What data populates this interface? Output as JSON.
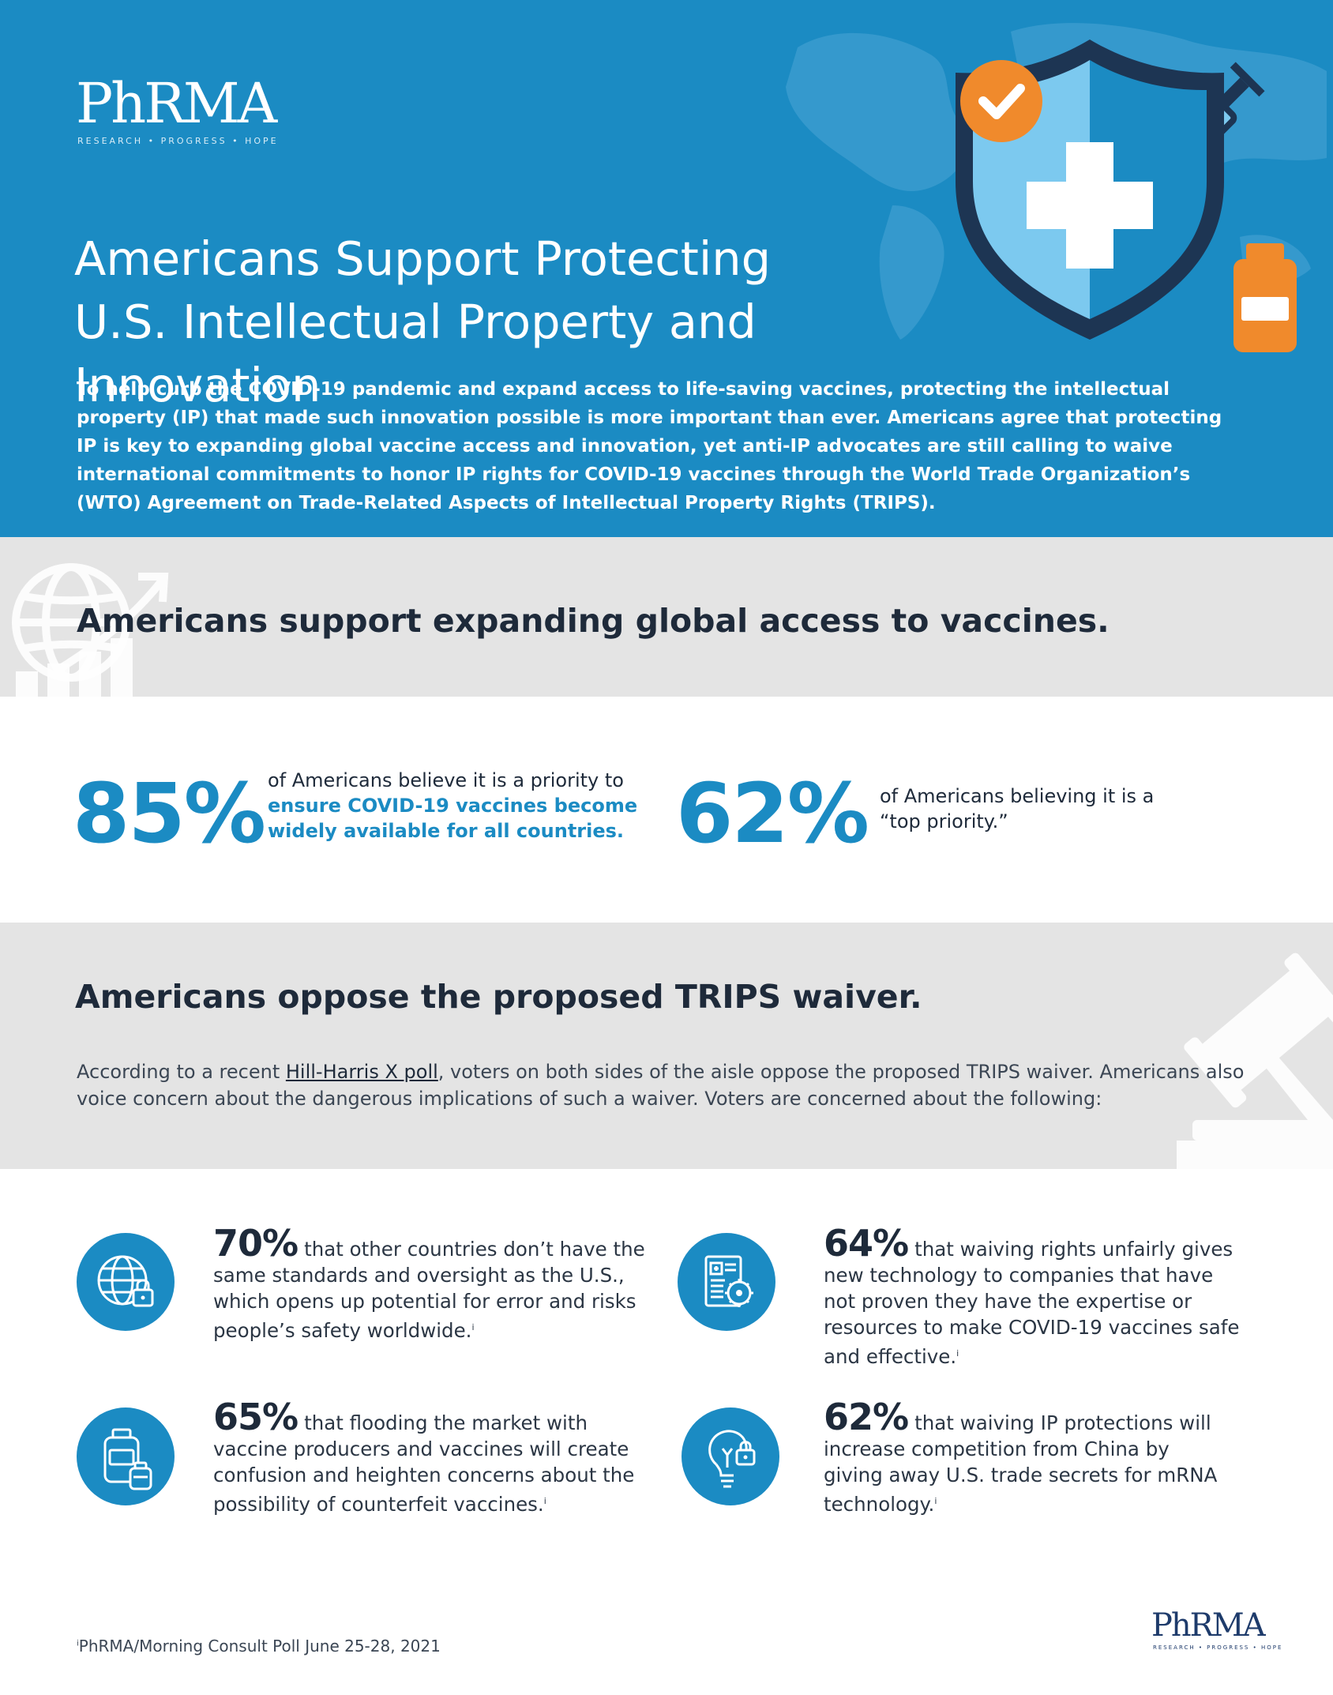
{
  "header": {
    "logo": "PhRMA",
    "logo_tagline": "RESEARCH • PROGRESS • HOPE",
    "title_line1": "Americans Support Protecting",
    "title_line2": "U.S. Intellectual Property and Innovation",
    "intro": "To help curb the COVID-19 pandemic and expand access to life-saving vaccines, protecting the intellectual property (IP) that made such innovation possible is more important than ever. Americans agree that protecting IP is key to expanding global vaccine access and innovation, yet anti-IP advocates are still calling to waive international commitments to honor IP rights for COVID-19 vaccines through the World Trade Organization’s (WTO) Agreement on Trade-Related Aspects of Intellectual Property Rights (TRIPS)."
  },
  "section_access": {
    "heading": "Americans support expanding global access to vaccines.",
    "stat1": {
      "value": "85%",
      "text": "of Americans believe it is a priority to",
      "highlight_line1": "ensure COVID-19 vaccines become",
      "highlight_line2": "widely available for all countries."
    },
    "stat2": {
      "value": "62%",
      "line1": "of Americans believing it is a",
      "line2": "“top priority.”"
    }
  },
  "section_trips": {
    "heading": "Americans oppose the proposed TRIPS waiver.",
    "intro_before_link": "According to a recent ",
    "link_text": "Hill-Harris X poll",
    "intro_after_link": ", voters on both sides of the aisle oppose the proposed TRIPS waiver. Americans also voice concern about the dangerous implications of such a waiver. Voters are concerned about the following:"
  },
  "concerns": [
    {
      "value": "70%",
      "text": "that other countries don’t have the same standards and oversight as the U.S., which opens up potential for error and risks people’s safety worldwide.",
      "note": "i",
      "icon": "globe-lock-icon"
    },
    {
      "value": "64%",
      "text": "that waiving rights unfairly gives new technology to companies that have not proven they have the expertise or resources to make COVID-19 vaccines safe and effective.",
      "note": "i",
      "icon": "document-virus-icon"
    },
    {
      "value": "65%",
      "text": "that flooding the market with vaccine producers and vaccines will create confusion and heighten concerns about the possibility of counterfeit vaccines.",
      "note": "i",
      "icon": "vaccine-vials-icon"
    },
    {
      "value": "62%",
      "text": "that waiving IP protections will increase competition from China by giving away U.S. trade secrets for mRNA technology.",
      "note": "i",
      "icon": "lightbulb-lock-icon"
    }
  ],
  "footer": {
    "footnote_marker": "i",
    "footnote": "PhRMA/Morning Consult Poll June 25-28, 2021",
    "logo": "PhRMA",
    "logo_tagline": "RESEARCH • PROGRESS • HOPE"
  },
  "colors": {
    "brand_blue": "#1b8bc3",
    "dark_navy": "#1e2a3a",
    "orange": "#f08a2c",
    "band_gray": "#e4e4e4"
  }
}
